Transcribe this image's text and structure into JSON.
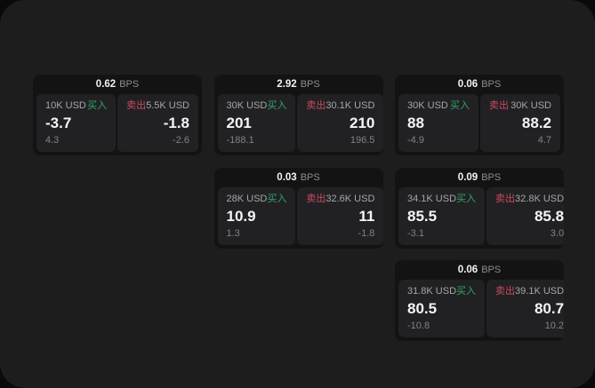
{
  "colors": {
    "buy_green": "#2fa763",
    "sell_red": "#cc4a5e",
    "panel_bg": "#1d1d1e",
    "card_bg": "#131314",
    "subpanel_bg": "#212124"
  },
  "cards": [
    {
      "bps": "0.62",
      "unit": "BPS",
      "buy": {
        "amount": "10K USD",
        "label": "买入",
        "value": "-3.7",
        "delta": "4.3"
      },
      "sell": {
        "label": "卖出",
        "amount": "5.5K USD",
        "value": "-1.8",
        "delta": "-2.6"
      }
    },
    {
      "bps": "2.92",
      "unit": "BPS",
      "buy": {
        "amount": "30K USD",
        "label": "买入",
        "value": "201",
        "delta": "-188.1"
      },
      "sell": {
        "label": "卖出",
        "amount": "30.1K USD",
        "value": "210",
        "delta": "196.5"
      }
    },
    {
      "bps": "0.06",
      "unit": "BPS",
      "buy": {
        "amount": "30K USD",
        "label": "买入",
        "value": "88",
        "delta": "-4.9"
      },
      "sell": {
        "label": "卖出",
        "amount": "30K USD",
        "value": "88.2",
        "delta": "4.7"
      }
    },
    {
      "bps": "0.03",
      "unit": "BPS",
      "buy": {
        "amount": "28K USD",
        "label": "买入",
        "value": "10.9",
        "delta": "1.3"
      },
      "sell": {
        "label": "卖出",
        "amount": "32.6K USD",
        "value": "11",
        "delta": "-1.8"
      }
    },
    {
      "bps": "0.09",
      "unit": "BPS",
      "buy": {
        "amount": "34.1K USD",
        "label": "买入",
        "value": "85.5",
        "delta": "-3.1"
      },
      "sell": {
        "label": "卖出",
        "amount": "32.8K USD",
        "value": "85.8",
        "delta": "3.0"
      }
    },
    {
      "bps": "0.06",
      "unit": "BPS",
      "buy": {
        "amount": "31.8K USD",
        "label": "买入",
        "value": "80.5",
        "delta": "-10.8"
      },
      "sell": {
        "label": "卖出",
        "amount": "39.1K USD",
        "value": "80.7",
        "delta": "10.2"
      }
    }
  ]
}
